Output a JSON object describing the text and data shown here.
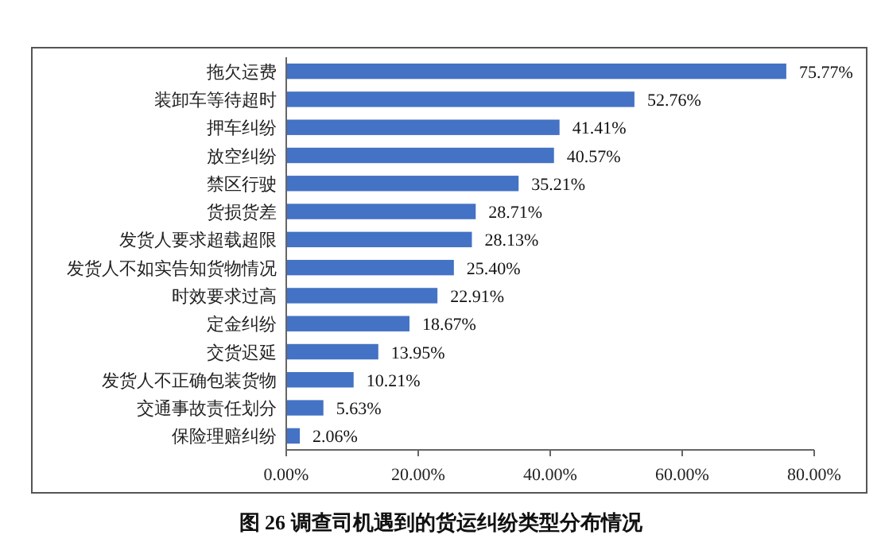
{
  "chart_data": {
    "type": "bar",
    "orientation": "horizontal",
    "title": "图 26 调查司机遇到的货运纠纷类型分布情况",
    "categories": [
      "拖欠运费",
      "装卸车等待超时",
      "押车纠纷",
      "放空纠纷",
      "禁区行驶",
      "货损货差",
      "发货人要求超载超限",
      "发货人不如实告知货物情况",
      "时效要求过高",
      "定金纠纷",
      "交货迟延",
      "发货人不正确包装货物",
      "交通事故责任划分",
      "保险理赔纠纷"
    ],
    "values": [
      75.77,
      52.76,
      41.41,
      40.57,
      35.21,
      28.71,
      28.13,
      25.4,
      22.91,
      18.67,
      13.95,
      10.21,
      5.63,
      2.06
    ],
    "value_labels": [
      "75.77%",
      "52.76%",
      "41.41%",
      "40.57%",
      "35.21%",
      "28.71%",
      "28.13%",
      "25.40%",
      "22.91%",
      "18.67%",
      "13.95%",
      "10.21%",
      "5.63%",
      "2.06%"
    ],
    "color": "#4472c4",
    "xlim": [
      0,
      80
    ],
    "xticks": [
      {
        "value": 0,
        "label": "0.00%"
      },
      {
        "value": 20,
        "label": "20.00%"
      },
      {
        "value": 40,
        "label": "40.00%"
      },
      {
        "value": 60,
        "label": "60.00%"
      },
      {
        "value": 80,
        "label": "80.00%"
      }
    ],
    "grid": false
  }
}
